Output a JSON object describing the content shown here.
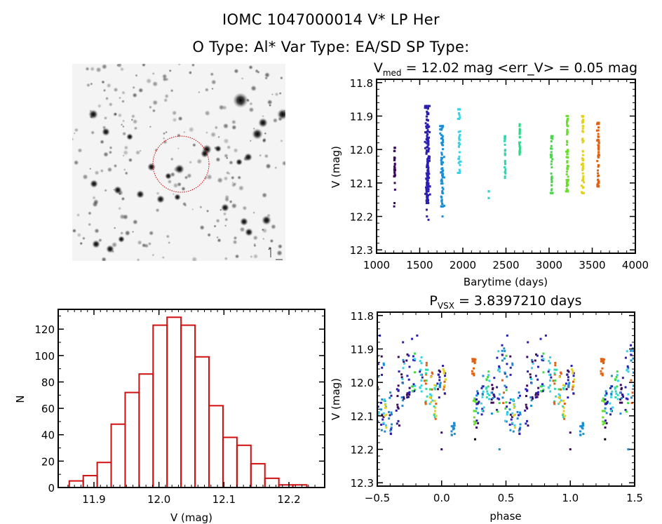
{
  "header": {
    "line1": "IOMC 1047000014    V* LP Her",
    "line2": "O Type: Al*  Var Type: EA/SD  SP Type:"
  },
  "sky_image": {
    "description": "Grayscale sky finder chart with red circle around target star",
    "marker_color": "#cc0000"
  },
  "chart_data": [
    {
      "id": "timeseries",
      "type": "scatter",
      "title_main": "V",
      "title_sub": "med",
      "title_rest": " = 12.02 mag <err_V> = 0.05 mag",
      "xlabel": "Barytime (days)",
      "ylabel": "V (mag)",
      "xlim": [
        1000,
        4000
      ],
      "ylim": [
        12.31,
        11.79
      ],
      "xticks": [
        1000,
        1500,
        2000,
        2500,
        3000,
        3500,
        4000
      ],
      "xtick_labels": [
        "1000",
        "1500",
        "2000",
        "2500",
        "3000",
        "3500",
        "4000"
      ],
      "yticks": [
        11.8,
        11.9,
        12.0,
        12.1,
        12.2,
        12.3
      ],
      "ytick_labels": [
        "11.8",
        "11.9",
        "12.0",
        "12.1",
        "12.2",
        "12.3"
      ],
      "clusters": [
        {
          "t": 1210,
          "spread": 12,
          "vmin": 11.995,
          "vmax": 12.08,
          "outliers": [
            12.1,
            12.12,
            12.16,
            12.17
          ],
          "n": 30,
          "color": "#3b0a5e"
        },
        {
          "t": 1590,
          "spread": 30,
          "vmin": 11.87,
          "vmax": 12.16,
          "outliers": [
            12.2,
            12.21,
            12.14,
            12.18
          ],
          "n": 170,
          "color": "#2a1fb4"
        },
        {
          "t": 1760,
          "spread": 25,
          "vmin": 11.93,
          "vmax": 12.17,
          "outliers": [
            12.2
          ],
          "n": 80,
          "color": "#1e8ed2"
        },
        {
          "t": 1960,
          "spread": 18,
          "vmin": 11.88,
          "vmax": 12.07,
          "outliers": [],
          "n": 40,
          "color": "#36d2e6"
        },
        {
          "t": 2300,
          "spread": 3,
          "vmin": 12.125,
          "vmax": 12.145,
          "outliers": [],
          "n": 5,
          "color": "#36d4cc"
        },
        {
          "t": 2490,
          "spread": 6,
          "vmin": 11.96,
          "vmax": 12.085,
          "outliers": [],
          "n": 25,
          "color": "#2fd8ae"
        },
        {
          "t": 2660,
          "spread": 6,
          "vmin": 11.925,
          "vmax": 12.015,
          "outliers": [],
          "n": 30,
          "color": "#2fd88a"
        },
        {
          "t": 3030,
          "spread": 12,
          "vmin": 11.96,
          "vmax": 12.13,
          "outliers": [],
          "n": 45,
          "color": "#46d84a"
        },
        {
          "t": 3210,
          "spread": 14,
          "vmin": 11.9,
          "vmax": 12.125,
          "outliers": [],
          "n": 60,
          "color": "#6ade2c"
        },
        {
          "t": 3390,
          "spread": 14,
          "vmin": 11.9,
          "vmax": 12.13,
          "outliers": [],
          "n": 60,
          "color": "#e6d01e"
        },
        {
          "t": 3570,
          "spread": 14,
          "vmin": 11.92,
          "vmax": 12.11,
          "outliers": [
            12.11
          ],
          "n": 60,
          "color": "#e06014"
        }
      ]
    },
    {
      "id": "histogram",
      "type": "bar",
      "xlabel": "V (mag)",
      "ylabel": "N",
      "xlim": [
        11.845,
        12.255
      ],
      "ylim": [
        0,
        135
      ],
      "xticks": [
        11.9,
        12.0,
        12.1,
        12.2
      ],
      "xtick_labels": [
        "11.9",
        "12.0",
        "12.1",
        "12.2"
      ],
      "yticks": [
        0,
        20,
        40,
        60,
        80,
        100,
        120
      ],
      "ytick_labels": [
        "0",
        "20",
        "40",
        "60",
        "80",
        "100",
        "120"
      ],
      "bin_start": 11.862,
      "bin_width": 0.0215,
      "values": [
        5,
        9,
        19,
        48,
        72,
        86,
        123,
        129,
        123,
        99,
        62,
        38,
        32,
        18,
        7,
        2,
        2
      ],
      "color": "#d01010"
    },
    {
      "id": "phased",
      "type": "scatter",
      "title_main": "P",
      "title_sub": "VSX",
      "title_rest": " = 3.8397210 days",
      "xlabel": "phase",
      "ylabel": "V (mag)",
      "xlim": [
        -0.5,
        1.5
      ],
      "ylim": [
        12.31,
        11.79
      ],
      "xticks": [
        -0.5,
        0.0,
        0.5,
        1.0,
        1.5
      ],
      "xtick_labels": [
        "−0.5",
        "0.0",
        "0.5",
        "1.0",
        "1.5"
      ],
      "yticks": [
        11.8,
        11.9,
        12.0,
        12.1,
        12.2,
        12.3
      ],
      "ytick_labels": [
        "11.8",
        "11.9",
        "12.0",
        "12.1",
        "12.2",
        "12.3"
      ],
      "period_days": 3.839721,
      "segments": [
        {
          "phase": 0.5,
          "vmin": 11.92,
          "vmax": 12.12,
          "colors": [
            "#2a1fb4",
            "#36d2e6",
            "#1e8ed2",
            "#46d84a"
          ]
        },
        {
          "phase": 0.54,
          "vmin": 11.9,
          "vmax": 12.15,
          "colors": [
            "#2a1fb4",
            "#1e8ed2",
            "#3b0a5e"
          ]
        },
        {
          "phase": 0.56,
          "vmin": 12.0,
          "vmax": 12.15,
          "colors": [
            "#e6d01e",
            "#36d2e6",
            "#1e8ed2"
          ]
        },
        {
          "phase": 0.6,
          "vmin": 12.02,
          "vmax": 12.16,
          "colors": [
            "#1e8ed2",
            "#2a1fb4"
          ]
        },
        {
          "phase": 0.66,
          "vmin": 11.92,
          "vmax": 12.15,
          "colors": [
            "#3b0a5e",
            "#2a1fb4"
          ]
        },
        {
          "phase": 0.7,
          "vmin": 11.93,
          "vmax": 12.08,
          "colors": [
            "#1e8ed2",
            "#36d2e6",
            "#3b0a5e"
          ]
        },
        {
          "phase": 0.74,
          "vmin": 11.9,
          "vmax": 12.05,
          "colors": [
            "#2a1fb4",
            "#3b0a5e"
          ]
        },
        {
          "phase": 0.78,
          "vmin": 11.9,
          "vmax": 12.03,
          "colors": [
            "#2a1fb4",
            "#46d84a",
            "#36d2e6"
          ]
        },
        {
          "phase": 0.84,
          "vmin": 11.92,
          "vmax": 12.03,
          "colors": [
            "#2a1fb4",
            "#36d2e6"
          ]
        },
        {
          "phase": 0.88,
          "vmin": 11.94,
          "vmax": 12.07,
          "colors": [
            "#e06014",
            "#2fd8ae",
            "#46d84a"
          ]
        },
        {
          "phase": 0.92,
          "vmin": 11.97,
          "vmax": 12.1,
          "colors": [
            "#46d84a",
            "#36d2e6",
            "#e06014",
            "#e6d01e"
          ]
        },
        {
          "phase": 0.95,
          "vmin": 12.0,
          "vmax": 12.11,
          "colors": [
            "#e06014",
            "#e6d01e",
            "#2fd8ae"
          ]
        },
        {
          "phase": 0.98,
          "vmin": 11.96,
          "vmax": 12.05,
          "colors": [
            "#3b0a5e",
            "#2a1fb4",
            "#1e8ed2"
          ]
        },
        {
          "phase": 1.02,
          "vmin": 11.94,
          "vmax": 12.04,
          "colors": [
            "#e6d01e",
            "#e06014",
            "#2a1fb4"
          ]
        },
        {
          "phase": 1.09,
          "vmin": 12.12,
          "vmax": 12.16,
          "colors": [
            "#1e8ed2"
          ]
        },
        {
          "phase": 1.25,
          "vmin": 11.92,
          "vmax": 11.98,
          "colors": [
            "#e06014"
          ]
        },
        {
          "phase": 1.26,
          "vmin": 12.04,
          "vmax": 12.13,
          "colors": [
            "#46d84a",
            "#6ade2c"
          ]
        },
        {
          "phase": 1.28,
          "vmin": 12.02,
          "vmax": 12.14,
          "colors": [
            "#2a1fb4",
            "#3b0a5e",
            "#1e8ed2"
          ]
        },
        {
          "phase": 1.32,
          "vmin": 11.98,
          "vmax": 12.1,
          "colors": [
            "#1e8ed2",
            "#2a1fb4",
            "#36d2e6"
          ]
        },
        {
          "phase": 1.36,
          "vmin": 11.96,
          "vmax": 12.05,
          "colors": [
            "#36d2e6",
            "#46d84a",
            "#2fd8ae"
          ]
        },
        {
          "phase": 1.4,
          "vmin": 11.98,
          "vmax": 12.1,
          "colors": [
            "#2a1fb4",
            "#1e8ed2",
            "#3b0a5e"
          ]
        },
        {
          "phase": 1.44,
          "vmin": 11.9,
          "vmax": 12.12,
          "colors": [
            "#2a1fb4",
            "#46d84a",
            "#36d2e6"
          ]
        },
        {
          "phase": 1.48,
          "vmin": 11.88,
          "vmax": 12.08,
          "colors": [
            "#2a1fb4",
            "#1e8ed2",
            "#e06014"
          ]
        }
      ],
      "outliers": [
        {
          "phase": -0.48,
          "v": 11.86,
          "color": "#2a1fb4"
        },
        {
          "phase": -0.3,
          "v": 11.88,
          "color": "#2a1fb4"
        },
        {
          "phase": -0.23,
          "v": 11.87,
          "color": "#2a1fb4"
        },
        {
          "phase": -0.19,
          "v": 11.86,
          "color": "#2a1fb4"
        },
        {
          "phase": 0.0,
          "v": 12.2,
          "color": "#3b0a5e"
        },
        {
          "phase": 0.0,
          "v": 12.15,
          "color": "#3b0a5e"
        },
        {
          "phase": 0.09,
          "v": 12.14,
          "color": "#1e8ed2"
        },
        {
          "phase": 0.26,
          "v": 12.17,
          "color": "#000000"
        },
        {
          "phase": 0.45,
          "v": 12.2,
          "color": "#1e8ed2"
        },
        {
          "phase": 0.51,
          "v": 11.86,
          "color": "#2a1fb4"
        },
        {
          "phase": 0.67,
          "v": 11.88,
          "color": "#2a1fb4"
        },
        {
          "phase": 0.77,
          "v": 11.87,
          "color": "#2a1fb4"
        },
        {
          "phase": 0.81,
          "v": 11.86,
          "color": "#2a1fb4"
        },
        {
          "phase": 1.0,
          "v": 12.2,
          "color": "#3b0a5e"
        },
        {
          "phase": 1.0,
          "v": 12.15,
          "color": "#3b0a5e"
        },
        {
          "phase": 1.27,
          "v": 12.17,
          "color": "#000000"
        },
        {
          "phase": 1.45,
          "v": 12.2,
          "color": "#1e8ed2"
        }
      ]
    }
  ]
}
